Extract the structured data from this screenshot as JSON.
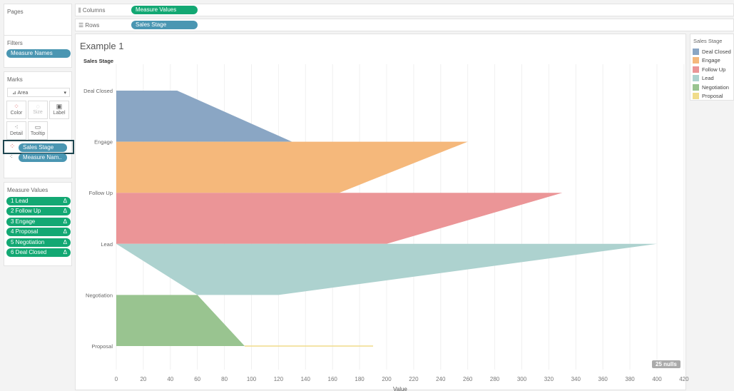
{
  "pages": {
    "title": "Pages"
  },
  "shelves": {
    "columns_label": "Columns",
    "columns_pill": "Measure Values",
    "rows_label": "Rows",
    "rows_pill": "Sales Stage"
  },
  "filters": {
    "title": "Filters",
    "items": [
      "Measure Names"
    ]
  },
  "marks": {
    "title": "Marks",
    "mark_type": "Area",
    "buttons": [
      {
        "label": "Color",
        "icon": "color-dots-icon"
      },
      {
        "label": "Size",
        "icon": "size-icon"
      },
      {
        "label": "Label",
        "icon": "label-icon"
      },
      {
        "label": "Detail",
        "icon": "detail-icon"
      },
      {
        "label": "Tooltip",
        "icon": "tooltip-icon"
      }
    ],
    "fields": [
      "Sales Stage",
      "Measure Nam.."
    ]
  },
  "measure_values": {
    "title": "Measure Values",
    "items": [
      "1 Lead",
      "2 Follow Up",
      "3 Engage",
      "4 Proposal",
      "5 Negotiation",
      "6 Deal Closed"
    ],
    "delta_symbol": "Δ"
  },
  "sheet": {
    "title": "Example 1",
    "nulls_badge": "25 nulls"
  },
  "legend": {
    "title": "Sales Stage"
  },
  "chart_data": {
    "type": "area",
    "orientation": "horizontal",
    "title": "Example 1",
    "ylabel": "Sales Stage",
    "xlabel": "Value",
    "xlim": [
      0,
      420
    ],
    "xticks": [
      0,
      20,
      40,
      60,
      80,
      100,
      120,
      140,
      160,
      180,
      200,
      220,
      240,
      260,
      280,
      300,
      320,
      340,
      360,
      380,
      400,
      420
    ],
    "categories": [
      "Deal Closed",
      "Engage",
      "Follow Up",
      "Lead",
      "Negotiation",
      "Proposal"
    ],
    "grid": "vertical",
    "legend": "right",
    "series": [
      {
        "name": "Deal Closed",
        "color": "#8aa6c4",
        "points": [
          {
            "stage": "Deal Closed",
            "low": 0,
            "high": 45
          },
          {
            "stage": "Engage",
            "low": 0,
            "high": 130
          }
        ]
      },
      {
        "name": "Engage",
        "color": "#f5b87b",
        "points": [
          {
            "stage": "Engage",
            "low": 0,
            "high": 260
          },
          {
            "stage": "Follow Up",
            "low": 0,
            "high": 165
          }
        ]
      },
      {
        "name": "Follow Up",
        "color": "#eb9597",
        "points": [
          {
            "stage": "Follow Up",
            "low": 0,
            "high": 330
          },
          {
            "stage": "Lead",
            "low": 0,
            "high": 200
          }
        ]
      },
      {
        "name": "Lead",
        "color": "#add2cf",
        "points": [
          {
            "stage": "Lead",
            "low": 0,
            "high": 400
          },
          {
            "stage": "Negotiation",
            "low": 60,
            "high": 120
          }
        ]
      },
      {
        "name": "Negotiation",
        "color": "#99c490",
        "points": [
          {
            "stage": "Negotiation",
            "low": 0,
            "high": 60
          },
          {
            "stage": "Proposal",
            "low": 0,
            "high": 95
          }
        ]
      },
      {
        "name": "Proposal",
        "color": "#f0dc8a",
        "points": [
          {
            "stage": "Proposal",
            "low": 95,
            "high": 190
          }
        ]
      }
    ]
  }
}
